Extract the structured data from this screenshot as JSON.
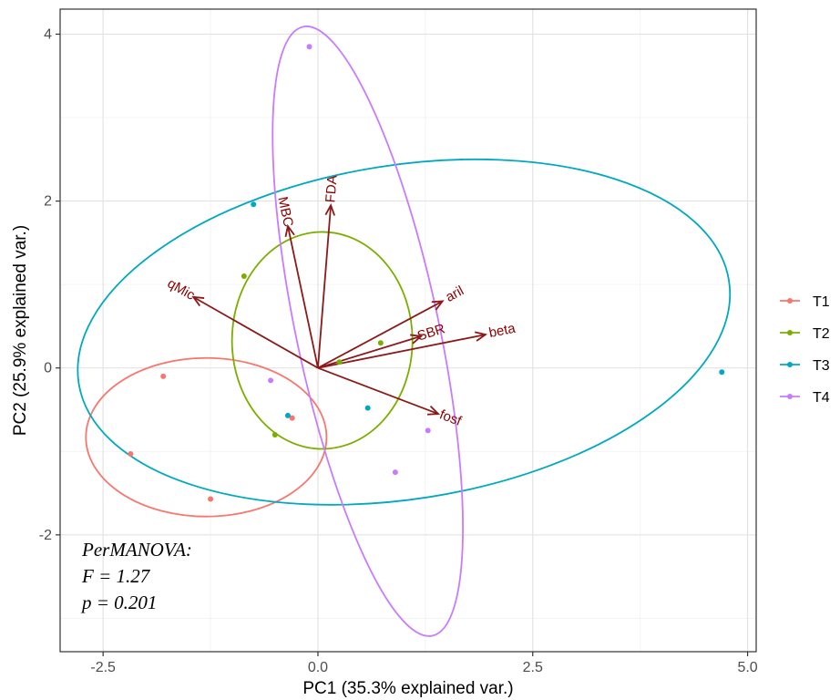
{
  "chart_data": {
    "type": "scatter",
    "subtype": "pca-biplot",
    "xlabel": "PC1 (35.3% explained var.)",
    "ylabel": "PC2 (25.9% explained var.)",
    "xlim": [
      -3.0,
      5.1
    ],
    "ylim": [
      -3.4,
      4.3
    ],
    "x_ticks": [
      -2.5,
      0.0,
      2.5,
      5.0
    ],
    "x_tick_labels": [
      "-2.5",
      "0.0",
      "2.5",
      "5.0"
    ],
    "y_ticks": [
      -2,
      0,
      2,
      4
    ],
    "y_tick_labels": [
      "-2",
      "0",
      "2",
      "4"
    ],
    "grid": true,
    "legend_position": "right",
    "series": [
      {
        "name": "T1",
        "color": "#F8766D",
        "points": [
          [
            -1.8,
            -0.1
          ],
          [
            -2.18,
            -1.03
          ],
          [
            -1.25,
            -1.57
          ],
          [
            -0.3,
            -0.6
          ]
        ],
        "ellipse": {
          "cx": -1.3,
          "cy": -0.83,
          "rx": 1.4,
          "ry": 0.95
        }
      },
      {
        "name": "T2",
        "color": "#7CAE00",
        "points": [
          [
            -0.86,
            1.1
          ],
          [
            0.25,
            0.07
          ],
          [
            0.73,
            0.3
          ],
          [
            -0.5,
            -0.8
          ]
        ],
        "ellipse": {
          "cx": 0.05,
          "cy": 0.33,
          "rx": 1.05,
          "ry": 1.3
        }
      },
      {
        "name": "T3",
        "color": "#00A9BE",
        "points": [
          [
            -0.75,
            1.96
          ],
          [
            -0.35,
            -0.57
          ],
          [
            0.58,
            -0.48
          ],
          [
            4.7,
            -0.05
          ]
        ],
        "ellipse": {
          "cx": 1.0,
          "cy": 0.43,
          "rx": 3.83,
          "ry": 2.0,
          "angle": -9
        }
      },
      {
        "name": "T4",
        "color": "#C77CFF",
        "points": [
          [
            -0.1,
            3.85
          ],
          [
            -0.55,
            -0.15
          ],
          [
            0.9,
            -1.25
          ],
          [
            1.28,
            -0.75
          ]
        ],
        "ellipse": {
          "cx": 0.58,
          "cy": 0.44,
          "rx": 0.83,
          "ry": 3.73,
          "angle": -12
        }
      }
    ],
    "loadings": [
      {
        "label": "MBC",
        "x": -0.35,
        "y": 1.7
      },
      {
        "label": "FDA",
        "x": 0.15,
        "y": 1.95
      },
      {
        "label": "qMic",
        "x": -1.45,
        "y": 0.85
      },
      {
        "label": "aril",
        "x": 1.45,
        "y": 0.8
      },
      {
        "label": "SBR",
        "x": 1.2,
        "y": 0.38
      },
      {
        "label": "beta",
        "x": 1.95,
        "y": 0.4
      },
      {
        "label": "fosf",
        "x": 1.4,
        "y": -0.55
      }
    ],
    "loading_color": "#8B1A1A",
    "annotation": [
      "PerMANOVA:",
      "F = 1.27",
      "p = 0.201"
    ]
  }
}
